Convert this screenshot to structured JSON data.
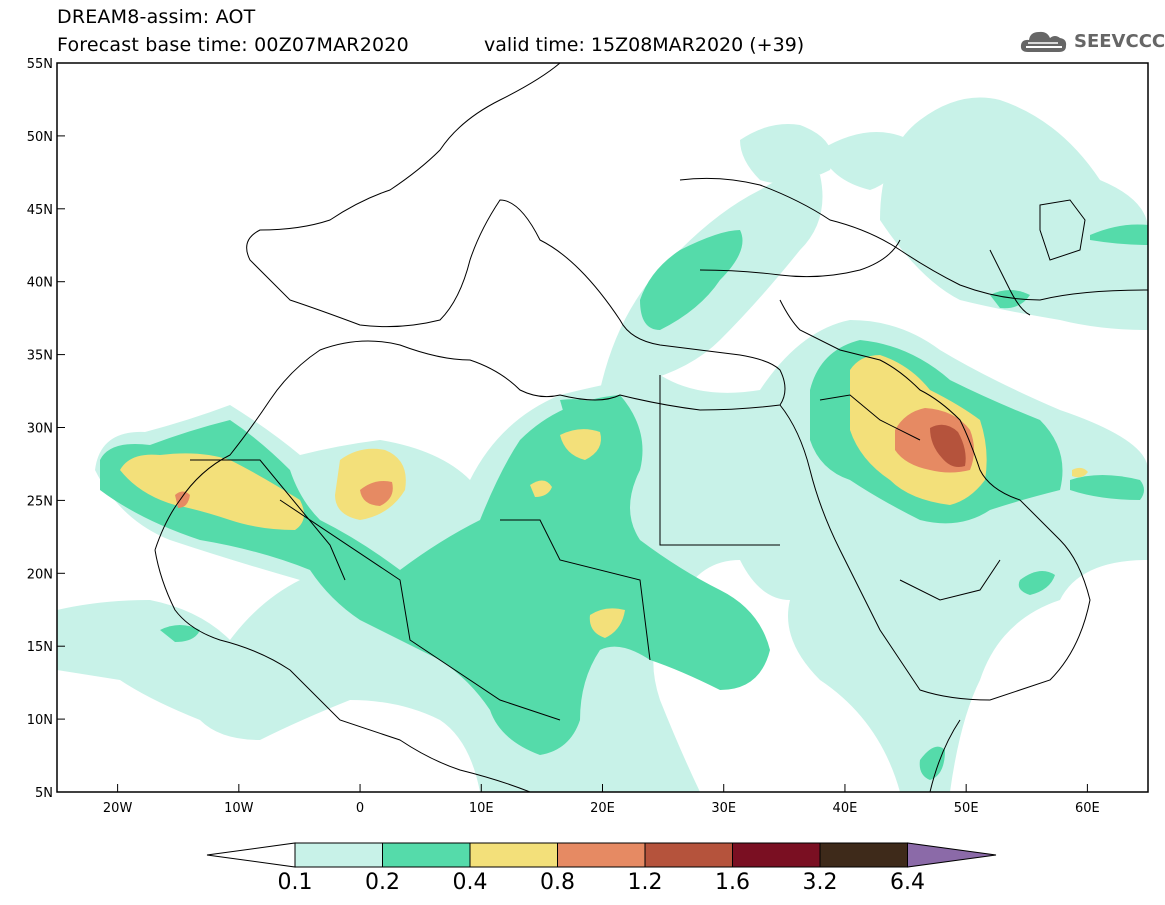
{
  "header": {
    "line1": "DREAM8-assim: AOT",
    "line2": "Forecast base time: 00Z07MAR2020",
    "valid": "valid time: 15Z08MAR2020 (+39)"
  },
  "logo": {
    "text": "SEEVCCC",
    "icon": "cloud-icon"
  },
  "map": {
    "lon_range": [
      -25,
      65
    ],
    "lat_range": [
      5,
      55
    ],
    "lat_ticks": [
      "5N",
      "10N",
      "15N",
      "20N",
      "25N",
      "30N",
      "35N",
      "40N",
      "45N",
      "50N",
      "55N"
    ],
    "lon_ticks": [
      "20W",
      "10W",
      "0",
      "10E",
      "20E",
      "30E",
      "40E",
      "50E",
      "60E"
    ]
  },
  "colorbar": {
    "labels": [
      "0.1",
      "0.2",
      "0.4",
      "0.8",
      "1.2",
      "1.6",
      "3.2",
      "6.4"
    ],
    "colors": [
      "#c8f2e8",
      "#55dbaa",
      "#f3e07a",
      "#e68a63",
      "#b5533c",
      "#7a0f22",
      "#3e2a1a"
    ],
    "under_color": "#ffffff",
    "over_color": "#8b6aa8"
  }
}
